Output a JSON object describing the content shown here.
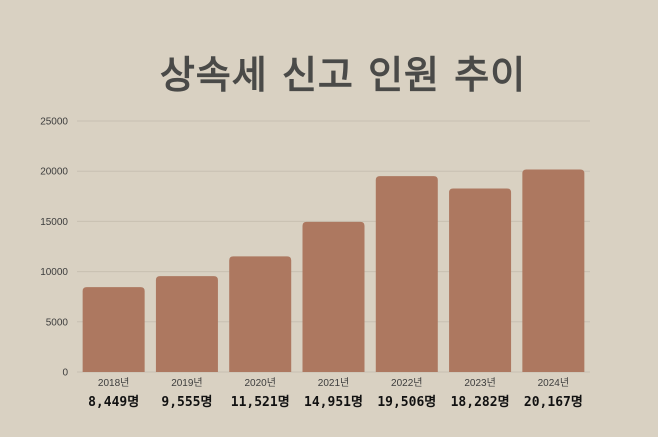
{
  "chart_data": {
    "type": "bar",
    "title": "상속세 신고 인원 추이",
    "categories": [
      "2018년",
      "2019년",
      "2020년",
      "2021년",
      "2022년",
      "2023년",
      "2024년"
    ],
    "values": [
      8449,
      9555,
      11521,
      14951,
      19506,
      18282,
      20167
    ],
    "value_labels": [
      "8,449명",
      "9,555명",
      "11,521명",
      "14,951명",
      "19,506명",
      "18,282명",
      "20,167명"
    ],
    "yticks": [
      "0",
      "5000",
      "10000",
      "15000",
      "20000",
      "25000"
    ],
    "ylim": [
      0,
      25000
    ],
    "xlabel": "",
    "ylabel": "",
    "grid": true,
    "legend": "none",
    "colors": {
      "background": "#d9d1c2",
      "bar": "#ad7860",
      "grid": "#c7bfb1",
      "title": "#4a4a48"
    }
  }
}
